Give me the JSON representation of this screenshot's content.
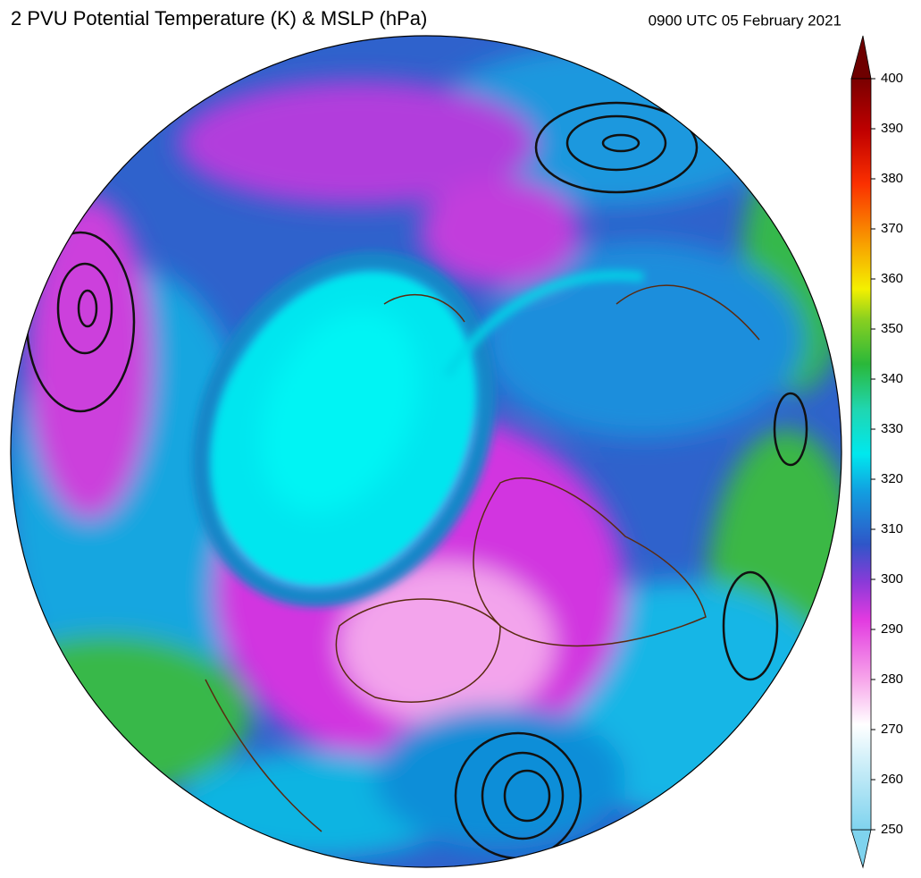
{
  "header": {
    "title": "2 PVU Potential Temperature (K) & MSLP (hPa)",
    "timestamp": "0900 UTC 05 February 2021"
  },
  "colorbar": {
    "lim": [
      250,
      400
    ],
    "ticks": [
      250,
      260,
      270,
      280,
      290,
      300,
      310,
      320,
      330,
      340,
      350,
      360,
      370,
      380,
      390,
      400
    ]
  }
}
